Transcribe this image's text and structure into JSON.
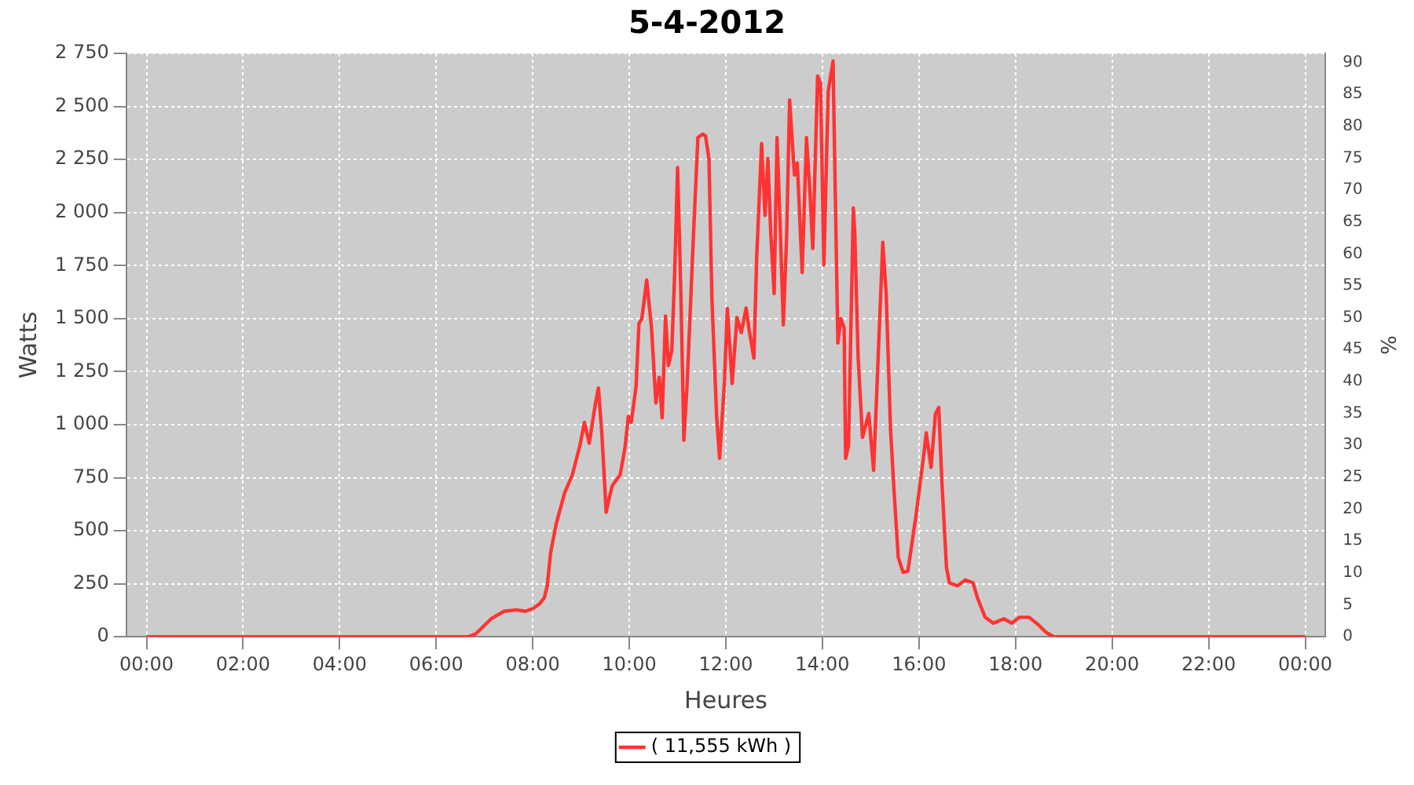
{
  "chart_data": {
    "type": "line",
    "title": "5-4-2012",
    "xlabel": "Heures",
    "ylabel": "Watts",
    "y2label": "%",
    "x": [
      0,
      6.66,
      6.82,
      7.14,
      7.4,
      7.66,
      7.85,
      8.01,
      8.14,
      8.24,
      8.3,
      8.37,
      8.49,
      8.66,
      8.82,
      8.98,
      9.07,
      9.17,
      9.3,
      9.36,
      9.43,
      9.49,
      9.52,
      9.59,
      9.65,
      9.81,
      9.91,
      9.98,
      10.04,
      10.14,
      10.2,
      10.26,
      10.36,
      10.46,
      10.55,
      10.62,
      10.68,
      10.75,
      10.81,
      10.88,
      10.94,
      11.0,
      11.07,
      11.13,
      11.2,
      11.33,
      11.42,
      11.52,
      11.58,
      11.65,
      11.71,
      11.81,
      11.87,
      11.97,
      12.03,
      12.13,
      12.23,
      12.32,
      12.42,
      12.48,
      12.58,
      12.64,
      12.74,
      12.81,
      12.87,
      12.93,
      13.0,
      13.06,
      13.13,
      13.19,
      13.26,
      13.32,
      13.42,
      13.48,
      13.58,
      13.67,
      13.74,
      13.8,
      13.9,
      13.96,
      14.03,
      14.12,
      14.22,
      14.25,
      14.32,
      14.38,
      14.45,
      14.48,
      14.54,
      14.64,
      14.67,
      14.74,
      14.83,
      14.9,
      14.96,
      15.06,
      15.15,
      15.25,
      15.32,
      15.41,
      15.48,
      15.57,
      15.67,
      15.77,
      15.93,
      16.09,
      16.15,
      16.25,
      16.34,
      16.41,
      16.47,
      16.57,
      16.63,
      16.8,
      16.96,
      17.12,
      17.21,
      17.37,
      17.54,
      17.76,
      17.92,
      18.08,
      18.28,
      18.47,
      18.63,
      18.79,
      24.0
    ],
    "series": [
      {
        "name": "( 11,555 kWh )",
        "color": "#ff3333",
        "values": [
          0,
          0,
          14,
          85,
          120,
          127,
          120,
          134,
          155,
          184,
          240,
          396,
          537,
          678,
          763,
          905,
          1011,
          912,
          1102,
          1173,
          960,
          720,
          587,
          660,
          714,
          763,
          890,
          1039,
          1011,
          1180,
          1477,
          1500,
          1682,
          1456,
          1102,
          1223,
          1032,
          1512,
          1279,
          1350,
          1717,
          2212,
          1600,
          926,
          1200,
          1900,
          2353,
          2370,
          2360,
          2250,
          1600,
          1032,
          841,
          1200,
          1548,
          1194,
          1505,
          1434,
          1550,
          1450,
          1314,
          1800,
          2325,
          1986,
          2254,
          1900,
          1618,
          2353,
          1900,
          1470,
          1900,
          2530,
          2177,
          2233,
          1717,
          2353,
          2100,
          1830,
          2643,
          2608,
          1753,
          2572,
          2714,
          2300,
          1385,
          1500,
          1456,
          841,
          900,
          2021,
          1900,
          1314,
          940,
          1000,
          1053,
          784,
          1293,
          1859,
          1618,
          982,
          700,
          375,
          304,
          310,
          558,
          841,
          961,
          799,
          1050,
          1081,
          749,
          325,
          254,
          240,
          268,
          254,
          184,
          92,
          64,
          85,
          64,
          92,
          92,
          57,
          21,
          0,
          0
        ]
      }
    ],
    "xlim": [
      -0.42,
      24.42
    ],
    "xticks": [
      {
        "value": 0,
        "label": "00:00"
      },
      {
        "value": 2,
        "label": "02:00"
      },
      {
        "value": 4,
        "label": "04:00"
      },
      {
        "value": 6,
        "label": "06:00"
      },
      {
        "value": 8,
        "label": "08:00"
      },
      {
        "value": 10,
        "label": "10:00"
      },
      {
        "value": 12,
        "label": "12:00"
      },
      {
        "value": 14,
        "label": "14:00"
      },
      {
        "value": 16,
        "label": "16:00"
      },
      {
        "value": 18,
        "label": "18:00"
      },
      {
        "value": 20,
        "label": "20:00"
      },
      {
        "value": 22,
        "label": "22:00"
      },
      {
        "value": 24,
        "label": "00:00"
      }
    ],
    "ylim": [
      0,
      2750
    ],
    "yticks": [
      0,
      250,
      500,
      750,
      {
        "value": 1000,
        "label": "1 000"
      },
      {
        "value": 1250,
        "label": "1 250"
      },
      {
        "value": 1500,
        "label": "1 500"
      },
      {
        "value": 1750,
        "label": "1 750"
      },
      {
        "value": 2000,
        "label": "2 000"
      },
      {
        "value": 2250,
        "label": "2 250"
      },
      {
        "value": 2500,
        "label": "2 500"
      },
      {
        "value": 2750,
        "label": "2 750"
      }
    ],
    "y2lim": [
      0,
      91.4
    ],
    "y2ticks": [
      0,
      5,
      10,
      15,
      20,
      25,
      30,
      35,
      40,
      45,
      50,
      55,
      60,
      65,
      70,
      75,
      80,
      85,
      90
    ],
    "grid": true,
    "legend": "bottom",
    "marker": "none",
    "line_style": "solid"
  }
}
